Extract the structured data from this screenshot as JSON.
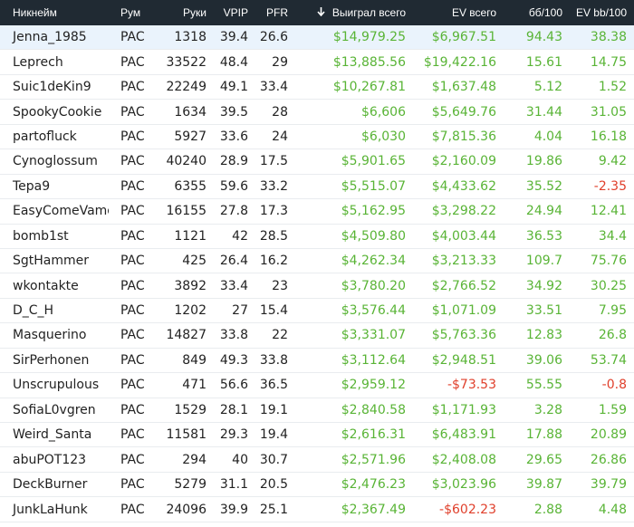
{
  "colors": {
    "header_bg": "#202a33",
    "positive": "#59b436",
    "negative": "#e0402c",
    "selected_row": "#eaf3fc"
  },
  "header": {
    "nick": "Никнейм",
    "room": "Рум",
    "hands": "Руки",
    "vpip": "VPIP",
    "pfr": "PFR",
    "won": "Выиграл всего",
    "won_sort_icon": "arrow-down-icon",
    "ev": "EV всего",
    "bb": "бб/100",
    "evbb": "EV bb/100"
  },
  "rows": [
    {
      "nick": "Jenna_1985",
      "room": "PAC",
      "hands": "1318",
      "vpip": "39.4",
      "pfr": "26.6",
      "won": "$14,979.25",
      "ev": "$6,967.51",
      "bb": "94.43",
      "evbb": "38.38"
    },
    {
      "nick": "Leprech",
      "room": "PAC",
      "hands": "33522",
      "vpip": "48.4",
      "pfr": "29",
      "won": "$13,885.56",
      "ev": "$19,422.16",
      "bb": "15.61",
      "evbb": "14.75"
    },
    {
      "nick": "Suic1deKin9",
      "room": "PAC",
      "hands": "22249",
      "vpip": "49.1",
      "pfr": "33.4",
      "won": "$10,267.81",
      "ev": "$1,637.48",
      "bb": "5.12",
      "evbb": "1.52"
    },
    {
      "nick": "SpookyCookie",
      "room": "PAC",
      "hands": "1634",
      "vpip": "39.5",
      "pfr": "28",
      "won": "$6,606",
      "ev": "$5,649.76",
      "bb": "31.44",
      "evbb": "31.05"
    },
    {
      "nick": "partofluck",
      "room": "PAC",
      "hands": "5927",
      "vpip": "33.6",
      "pfr": "24",
      "won": "$6,030",
      "ev": "$7,815.36",
      "bb": "4.04",
      "evbb": "16.18"
    },
    {
      "nick": "Cynoglossum",
      "room": "PAC",
      "hands": "40240",
      "vpip": "28.9",
      "pfr": "17.5",
      "won": "$5,901.65",
      "ev": "$2,160.09",
      "bb": "19.86",
      "evbb": "9.42"
    },
    {
      "nick": "Tepa9",
      "room": "PAC",
      "hands": "6355",
      "vpip": "59.6",
      "pfr": "33.2",
      "won": "$5,515.07",
      "ev": "$4,433.62",
      "bb": "35.52",
      "evbb": "-2.35"
    },
    {
      "nick": "EasyComeVamo",
      "room": "PAC",
      "hands": "16155",
      "vpip": "27.8",
      "pfr": "17.3",
      "won": "$5,162.95",
      "ev": "$3,298.22",
      "bb": "24.94",
      "evbb": "12.41"
    },
    {
      "nick": "bomb1st",
      "room": "PAC",
      "hands": "1121",
      "vpip": "42",
      "pfr": "28.5",
      "won": "$4,509.80",
      "ev": "$4,003.44",
      "bb": "36.53",
      "evbb": "34.4"
    },
    {
      "nick": "SgtHammer",
      "room": "PAC",
      "hands": "425",
      "vpip": "26.4",
      "pfr": "16.2",
      "won": "$4,262.34",
      "ev": "$3,213.33",
      "bb": "109.7",
      "evbb": "75.76"
    },
    {
      "nick": "wkontakte",
      "room": "PAC",
      "hands": "3892",
      "vpip": "33.4",
      "pfr": "23",
      "won": "$3,780.20",
      "ev": "$2,766.52",
      "bb": "34.92",
      "evbb": "30.25"
    },
    {
      "nick": "D_C_H",
      "room": "PAC",
      "hands": "1202",
      "vpip": "27",
      "pfr": "15.4",
      "won": "$3,576.44",
      "ev": "$1,071.09",
      "bb": "33.51",
      "evbb": "7.95"
    },
    {
      "nick": "Masquerino",
      "room": "PAC",
      "hands": "14827",
      "vpip": "33.8",
      "pfr": "22",
      "won": "$3,331.07",
      "ev": "$5,763.36",
      "bb": "12.83",
      "evbb": "26.8"
    },
    {
      "nick": "SirPerhonen",
      "room": "PAC",
      "hands": "849",
      "vpip": "49.3",
      "pfr": "33.8",
      "won": "$3,112.64",
      "ev": "$2,948.51",
      "bb": "39.06",
      "evbb": "53.74"
    },
    {
      "nick": "Unscrupulous",
      "room": "PAC",
      "hands": "471",
      "vpip": "56.6",
      "pfr": "36.5",
      "won": "$2,959.12",
      "ev": "-$73.53",
      "bb": "55.55",
      "evbb": "-0.8"
    },
    {
      "nick": "SofiaL0vgren",
      "room": "PAC",
      "hands": "1529",
      "vpip": "28.1",
      "pfr": "19.1",
      "won": "$2,840.58",
      "ev": "$1,171.93",
      "bb": "3.28",
      "evbb": "1.59"
    },
    {
      "nick": "Weird_Santa",
      "room": "PAC",
      "hands": "11581",
      "vpip": "29.3",
      "pfr": "19.4",
      "won": "$2,616.31",
      "ev": "$6,483.91",
      "bb": "17.88",
      "evbb": "20.89"
    },
    {
      "nick": "abuPOT123",
      "room": "PAC",
      "hands": "294",
      "vpip": "40",
      "pfr": "30.7",
      "won": "$2,571.96",
      "ev": "$2,408.08",
      "bb": "29.65",
      "evbb": "26.86"
    },
    {
      "nick": "DeckBurner",
      "room": "PAC",
      "hands": "5279",
      "vpip": "31.1",
      "pfr": "20.5",
      "won": "$2,476.23",
      "ev": "$3,023.96",
      "bb": "39.87",
      "evbb": "39.79"
    },
    {
      "nick": "JunkLaHunk",
      "room": "PAC",
      "hands": "24096",
      "vpip": "39.9",
      "pfr": "25.1",
      "won": "$2,367.49",
      "ev": "-$602.23",
      "bb": "2.88",
      "evbb": "4.48"
    }
  ]
}
